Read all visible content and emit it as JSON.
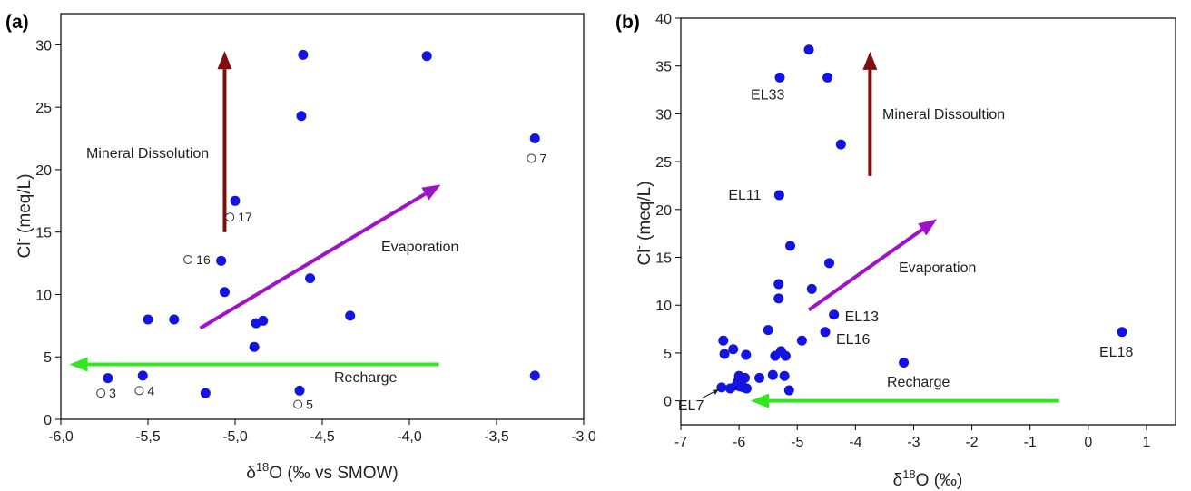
{
  "chart_data": [
    {
      "type": "scatter",
      "panel_label": "(a)",
      "xlabel_main": "δ",
      "xlabel_sup": "18",
      "xlabel_rest": "O (‰ vs SMOW)",
      "ylabel_main": "Cl",
      "ylabel_sup": "-",
      "ylabel_rest": " (meq/L)",
      "xlim": [
        -6.0,
        -3.0
      ],
      "ylim": [
        0,
        32.5
      ],
      "xticks": [
        -6.0,
        -5.5,
        -5.0,
        -4.5,
        -4.0,
        -3.5,
        -3.0
      ],
      "xtick_labels": [
        "-6,0",
        "-5,5",
        "-5,0",
        "-4,5",
        "-4,0",
        "-3,5",
        "-3,0"
      ],
      "yticks": [
        0,
        5,
        10,
        15,
        20,
        25,
        30
      ],
      "ytick_labels": [
        "0",
        "5",
        "10",
        "15",
        "20",
        "25",
        "30"
      ],
      "marker_color": "#1414e0",
      "series": [
        {
          "marker": "filled-circle",
          "x": [
            -5.73,
            -5.53,
            -5.5,
            -5.35,
            -5.17,
            -5.08,
            -5.06,
            -5.0,
            -4.89,
            -4.88,
            -4.84,
            -4.63,
            -4.62,
            -4.61,
            -4.57,
            -4.34,
            -3.9,
            -3.28,
            -3.28
          ],
          "y": [
            3.3,
            3.5,
            8.0,
            8.0,
            2.1,
            12.7,
            10.2,
            17.5,
            5.8,
            7.7,
            7.9,
            2.3,
            24.3,
            29.2,
            11.3,
            8.3,
            29.1,
            22.5,
            3.5
          ]
        },
        {
          "marker": "open-circle",
          "x": [
            -5.77,
            -5.55,
            -5.27,
            -5.03,
            -4.64,
            -3.3
          ],
          "y": [
            2.1,
            2.3,
            12.8,
            16.2,
            1.2,
            20.9
          ],
          "labels": [
            "3",
            "4",
            "16",
            "17",
            "5",
            "7"
          ]
        }
      ],
      "arrows": [
        {
          "name": "mineral-dissolution",
          "label": "Mineral Dissolution",
          "color": "#7f0f0f",
          "from": [
            -5.06,
            15.0
          ],
          "to": [
            -5.06,
            29.5
          ]
        },
        {
          "name": "evaporation",
          "label": "Evaporation",
          "color": "#a012c8",
          "from": [
            -5.2,
            7.3
          ],
          "to": [
            -3.82,
            18.8
          ]
        },
        {
          "name": "recharge",
          "label": "Recharge",
          "color": "#2fe81e",
          "from": [
            -3.83,
            4.4
          ],
          "to": [
            -5.95,
            4.4
          ]
        }
      ]
    },
    {
      "type": "scatter",
      "panel_label": "(b)",
      "xlabel_main": "δ",
      "xlabel_sup": "18",
      "xlabel_rest": "O (‰)",
      "ylabel_main": "Cl",
      "ylabel_sup": "-",
      "ylabel_rest": " (meq/L)",
      "xlim": [
        -7,
        1.5
      ],
      "ylim": [
        -2.5,
        40
      ],
      "xticks": [
        -7,
        -6,
        -5,
        -4,
        -3,
        -2,
        -1,
        0,
        1
      ],
      "xtick_labels": [
        "-7",
        "-6",
        "-5",
        "-4",
        "-3",
        "-2",
        "-1",
        "0",
        "1"
      ],
      "yticks": [
        0,
        5,
        10,
        15,
        20,
        25,
        30,
        35,
        40
      ],
      "ytick_labels": [
        "0",
        "5",
        "10",
        "15",
        "20",
        "25",
        "30",
        "35",
        "40"
      ],
      "marker_color": "#1414e0",
      "series": [
        {
          "marker": "filled-circle",
          "x": [
            -6.3,
            -6.27,
            -6.25,
            -6.15,
            -6.1,
            -6.05,
            -6.02,
            -6.0,
            -5.98,
            -5.95,
            -5.92,
            -5.9,
            -5.88,
            -5.87,
            -5.65,
            -5.5,
            -5.42,
            -5.38,
            -5.32,
            -5.32,
            -5.31,
            -5.28,
            -5.22,
            -5.2,
            -5.14,
            -5.12,
            -4.92,
            -4.8,
            -4.75,
            -4.52,
            -4.45,
            -4.37,
            -4.25,
            -3.17,
            -5.3,
            -4.48,
            0.58
          ],
          "y": [
            1.4,
            6.3,
            4.9,
            1.3,
            5.4,
            1.6,
            2.0,
            2.6,
            1.5,
            2.2,
            1.4,
            2.4,
            4.8,
            1.3,
            2.4,
            7.4,
            2.7,
            4.7,
            10.7,
            12.2,
            21.5,
            5.2,
            2.6,
            4.7,
            1.1,
            16.2,
            6.3,
            36.7,
            11.7,
            7.2,
            14.4,
            9.0,
            26.8,
            4.0,
            33.8,
            33.8,
            7.2
          ]
        }
      ],
      "point_labels": [
        {
          "text": "EL33",
          "at": [
            -5.3,
            33.8
          ],
          "dx": -32,
          "dy": 24
        },
        {
          "text": "EL11",
          "at": [
            -5.31,
            21.5
          ],
          "dx": -56,
          "dy": 5
        },
        {
          "text": "EL13",
          "at": [
            -4.37,
            9.0
          ],
          "dx": 12,
          "dy": 7
        },
        {
          "text": "EL16",
          "at": [
            -4.52,
            7.2
          ],
          "dx": 12,
          "dy": 13
        },
        {
          "text": "EL18",
          "at": [
            0.58,
            7.2
          ],
          "dx": -25,
          "dy": 27
        },
        {
          "text": "EL7",
          "at": [
            -6.3,
            1.4
          ],
          "dx": -48,
          "dy": 25
        }
      ],
      "arrows": [
        {
          "name": "mineral-dissolution",
          "label": "Mineral Dissoultion",
          "color": "#7f0f0f",
          "from": [
            -3.75,
            23.5
          ],
          "to": [
            -3.75,
            36.5
          ]
        },
        {
          "name": "evaporation",
          "label": "Evaporation",
          "color": "#a012c8",
          "from": [
            -4.8,
            9.5
          ],
          "to": [
            -2.6,
            19.0
          ]
        },
        {
          "name": "recharge",
          "label": "Recharge",
          "color": "#2fe81e",
          "from": [
            -0.5,
            0.0
          ],
          "to": [
            -5.8,
            0.0
          ]
        }
      ]
    }
  ]
}
